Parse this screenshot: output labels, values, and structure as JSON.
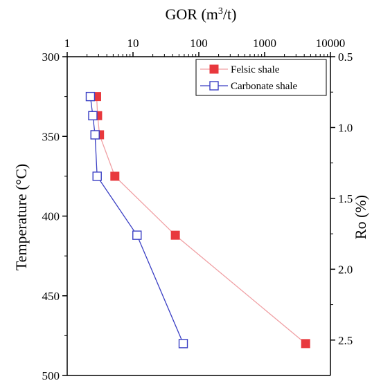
{
  "chart_data": {
    "type": "scatter",
    "title": "",
    "x_axis": {
      "label_main": "GOR (m",
      "label_sup": "3",
      "label_end": "/t)",
      "scale": "log",
      "range": [
        1,
        10000
      ],
      "ticks": [
        "1",
        "10",
        "100",
        "1000",
        "10000"
      ],
      "position": "top"
    },
    "y_axis_left": {
      "label": "Temperature (°C)",
      "range": [
        300,
        500
      ],
      "ticks": [
        "300",
        "350",
        "400",
        "450",
        "500"
      ],
      "inverted": true
    },
    "y_axis_right": {
      "label": "Ro (%)",
      "range": [
        0.5,
        2.75
      ],
      "ticks": [
        "0.5",
        "1.0",
        "1.5",
        "2.0",
        "2.5"
      ],
      "inverted": true
    },
    "series": [
      {
        "name": "Felsic shale",
        "color": "#e8383d",
        "line_color": "#f0a0a4",
        "marker": "filled-square",
        "points": [
          {
            "x": 2.8,
            "y": 325
          },
          {
            "x": 2.9,
            "y": 337
          },
          {
            "x": 3.1,
            "y": 349
          },
          {
            "x": 5.3,
            "y": 375
          },
          {
            "x": 44,
            "y": 412
          },
          {
            "x": 4200,
            "y": 480
          }
        ]
      },
      {
        "name": "Carbonate shale",
        "color": "#3a3fc4",
        "line_color": "#3a3fc4",
        "marker": "open-square",
        "points": [
          {
            "x": 2.25,
            "y": 325
          },
          {
            "x": 2.45,
            "y": 337
          },
          {
            "x": 2.65,
            "y": 349
          },
          {
            "x": 2.85,
            "y": 375
          },
          {
            "x": 11.5,
            "y": 412
          },
          {
            "x": 58,
            "y": 480
          }
        ]
      }
    ],
    "legend_position": "top-right",
    "grid": false
  }
}
